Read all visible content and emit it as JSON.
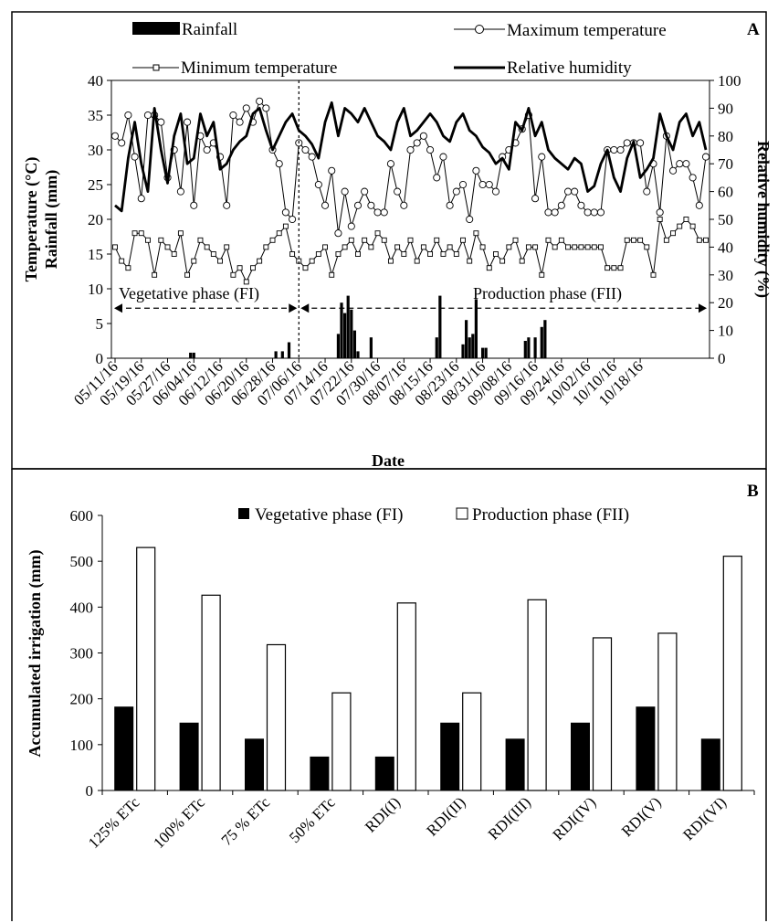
{
  "chart_data": [
    {
      "panel": "A",
      "type": "line",
      "xlabel": "Date",
      "ylabel_left_1": "Temperature  (°C)",
      "ylabel_left_2": "Rainfall (mm)",
      "ylabel_right": "Relative humidity  (%)",
      "ylim_left": [
        0,
        40
      ],
      "ylim_right": [
        0,
        100
      ],
      "left_ticks": [
        "0",
        "5",
        "10",
        "15",
        "20",
        "25",
        "30",
        "35",
        "40"
      ],
      "right_ticks": [
        "0",
        "10",
        "20",
        "30",
        "40",
        "50",
        "60",
        "70",
        "80",
        "90",
        "100"
      ],
      "date_ticks": [
        "05/11/16",
        "05/19/16",
        "05/27/16",
        "06/04/16",
        "06/12/16",
        "06/20/16",
        "06/28/16",
        "07/06/16",
        "07/14/16",
        "07/22/16",
        "07/30/16",
        "08/07/16",
        "08/15/16",
        "08/23/16",
        "08/31/16",
        "09/08/16",
        "09/16/16",
        "09/24/16",
        "10/02/16",
        "10/10/16",
        "10/18/16"
      ],
      "legend": {
        "rainfall": "Rainfall",
        "tmax": "Maximum temperature",
        "tmin": "Minimum temperature",
        "rh": "Relative humidity"
      },
      "phase_fi_label": "Vegetative phase (FI)",
      "phase_fii_label": "Production phase (FII)",
      "phase_boundary_date": "07/06/16",
      "rainfall_mm": [
        [
          23,
          0.8
        ],
        [
          24,
          0.8
        ],
        [
          49,
          1.0
        ],
        [
          51,
          1.0
        ],
        [
          53,
          2.3
        ],
        [
          68,
          3.5
        ],
        [
          69,
          8.0
        ],
        [
          70,
          6.5
        ],
        [
          71,
          9.0
        ],
        [
          72,
          7.0
        ],
        [
          73,
          4.0
        ],
        [
          74,
          1.0
        ],
        [
          78,
          3.0
        ],
        [
          98,
          3.0
        ],
        [
          99,
          9.0
        ],
        [
          106,
          2.0
        ],
        [
          107,
          5.5
        ],
        [
          108,
          3.0
        ],
        [
          109,
          3.5
        ],
        [
          110,
          8.5
        ],
        [
          112,
          1.5
        ],
        [
          113,
          1.5
        ],
        [
          125,
          2.5
        ],
        [
          126,
          3.0
        ],
        [
          128,
          3.0
        ],
        [
          130,
          4.5
        ],
        [
          131,
          5.5
        ]
      ],
      "tmax_c": [
        [
          0,
          32
        ],
        [
          2,
          31
        ],
        [
          4,
          35
        ],
        [
          6,
          29
        ],
        [
          8,
          23
        ],
        [
          10,
          35
        ],
        [
          12,
          35
        ],
        [
          14,
          34
        ],
        [
          16,
          26
        ],
        [
          18,
          30
        ],
        [
          20,
          24
        ],
        [
          22,
          34
        ],
        [
          24,
          22
        ],
        [
          26,
          32
        ],
        [
          28,
          30
        ],
        [
          30,
          31
        ],
        [
          32,
          29
        ],
        [
          34,
          22
        ],
        [
          36,
          35
        ],
        [
          38,
          34
        ],
        [
          40,
          36
        ],
        [
          42,
          34
        ],
        [
          44,
          37
        ],
        [
          46,
          36
        ],
        [
          48,
          30
        ],
        [
          50,
          28
        ],
        [
          52,
          21
        ],
        [
          54,
          20
        ],
        [
          56,
          31
        ],
        [
          58,
          30
        ],
        [
          60,
          29
        ],
        [
          62,
          25
        ],
        [
          64,
          22
        ],
        [
          66,
          27
        ],
        [
          68,
          18
        ],
        [
          70,
          24
        ],
        [
          72,
          19
        ],
        [
          74,
          22
        ],
        [
          76,
          24
        ],
        [
          78,
          22
        ],
        [
          80,
          21
        ],
        [
          82,
          21
        ],
        [
          84,
          28
        ],
        [
          86,
          24
        ],
        [
          88,
          22
        ],
        [
          90,
          30
        ],
        [
          92,
          31
        ],
        [
          94,
          32
        ],
        [
          96,
          30
        ],
        [
          98,
          26
        ],
        [
          100,
          29
        ],
        [
          102,
          22
        ],
        [
          104,
          24
        ],
        [
          106,
          25
        ],
        [
          108,
          20
        ],
        [
          110,
          27
        ],
        [
          112,
          25
        ],
        [
          114,
          25
        ],
        [
          116,
          24
        ],
        [
          118,
          29
        ],
        [
          120,
          30
        ],
        [
          122,
          31
        ],
        [
          124,
          33
        ],
        [
          126,
          35
        ],
        [
          128,
          23
        ],
        [
          130,
          29
        ],
        [
          132,
          21
        ],
        [
          134,
          21
        ],
        [
          136,
          22
        ],
        [
          138,
          24
        ],
        [
          140,
          24
        ],
        [
          142,
          22
        ],
        [
          144,
          21
        ],
        [
          146,
          21
        ],
        [
          148,
          21
        ],
        [
          150,
          30
        ],
        [
          152,
          30
        ],
        [
          154,
          30
        ],
        [
          156,
          31
        ],
        [
          158,
          31
        ],
        [
          160,
          31
        ],
        [
          162,
          24
        ],
        [
          164,
          28
        ],
        [
          166,
          21
        ],
        [
          168,
          32
        ],
        [
          170,
          27
        ],
        [
          172,
          28
        ],
        [
          174,
          28
        ],
        [
          176,
          26
        ],
        [
          178,
          22
        ],
        [
          180,
          29
        ]
      ],
      "tmin_c": [
        [
          0,
          16
        ],
        [
          2,
          14
        ],
        [
          4,
          13
        ],
        [
          6,
          18
        ],
        [
          8,
          18
        ],
        [
          10,
          17
        ],
        [
          12,
          12
        ],
        [
          14,
          17
        ],
        [
          16,
          16
        ],
        [
          18,
          15
        ],
        [
          20,
          18
        ],
        [
          22,
          12
        ],
        [
          24,
          14
        ],
        [
          26,
          17
        ],
        [
          28,
          16
        ],
        [
          30,
          15
        ],
        [
          32,
          14
        ],
        [
          34,
          16
        ],
        [
          36,
          12
        ],
        [
          38,
          13
        ],
        [
          40,
          11
        ],
        [
          42,
          13
        ],
        [
          44,
          14
        ],
        [
          46,
          16
        ],
        [
          48,
          17
        ],
        [
          50,
          18
        ],
        [
          52,
          19
        ],
        [
          54,
          15
        ],
        [
          56,
          14
        ],
        [
          58,
          13
        ],
        [
          60,
          14
        ],
        [
          62,
          15
        ],
        [
          64,
          16
        ],
        [
          66,
          12
        ],
        [
          68,
          15
        ],
        [
          70,
          16
        ],
        [
          72,
          17
        ],
        [
          74,
          15
        ],
        [
          76,
          17
        ],
        [
          78,
          16
        ],
        [
          80,
          18
        ],
        [
          82,
          17
        ],
        [
          84,
          14
        ],
        [
          86,
          16
        ],
        [
          88,
          15
        ],
        [
          90,
          17
        ],
        [
          92,
          14
        ],
        [
          94,
          16
        ],
        [
          96,
          15
        ],
        [
          98,
          17
        ],
        [
          100,
          15
        ],
        [
          102,
          16
        ],
        [
          104,
          15
        ],
        [
          106,
          17
        ],
        [
          108,
          14
        ],
        [
          110,
          18
        ],
        [
          112,
          16
        ],
        [
          114,
          13
        ],
        [
          116,
          15
        ],
        [
          118,
          14
        ],
        [
          120,
          16
        ],
        [
          122,
          17
        ],
        [
          124,
          14
        ],
        [
          126,
          16
        ],
        [
          128,
          16
        ],
        [
          130,
          12
        ],
        [
          132,
          17
        ],
        [
          134,
          16
        ],
        [
          136,
          17
        ],
        [
          138,
          16
        ],
        [
          140,
          16
        ],
        [
          142,
          16
        ],
        [
          144,
          16
        ],
        [
          146,
          16
        ],
        [
          148,
          16
        ],
        [
          150,
          13
        ],
        [
          152,
          13
        ],
        [
          154,
          13
        ],
        [
          156,
          17
        ],
        [
          158,
          17
        ],
        [
          160,
          17
        ],
        [
          162,
          16
        ],
        [
          164,
          12
        ],
        [
          166,
          20
        ],
        [
          168,
          17
        ],
        [
          170,
          18
        ],
        [
          172,
          19
        ],
        [
          174,
          20
        ],
        [
          176,
          19
        ],
        [
          178,
          17
        ],
        [
          180,
          17
        ]
      ],
      "rh_pct": [
        [
          0,
          55
        ],
        [
          2,
          53
        ],
        [
          4,
          72
        ],
        [
          6,
          85
        ],
        [
          8,
          70
        ],
        [
          10,
          60
        ],
        [
          12,
          90
        ],
        [
          14,
          75
        ],
        [
          16,
          63
        ],
        [
          18,
          80
        ],
        [
          20,
          88
        ],
        [
          22,
          70
        ],
        [
          24,
          72
        ],
        [
          26,
          88
        ],
        [
          28,
          80
        ],
        [
          30,
          85
        ],
        [
          32,
          68
        ],
        [
          34,
          70
        ],
        [
          36,
          75
        ],
        [
          38,
          78
        ],
        [
          40,
          80
        ],
        [
          42,
          88
        ],
        [
          44,
          90
        ],
        [
          46,
          82
        ],
        [
          48,
          75
        ],
        [
          50,
          80
        ],
        [
          52,
          85
        ],
        [
          54,
          88
        ],
        [
          56,
          82
        ],
        [
          58,
          80
        ],
        [
          60,
          77
        ],
        [
          62,
          72
        ],
        [
          64,
          85
        ],
        [
          66,
          92
        ],
        [
          68,
          80
        ],
        [
          70,
          90
        ],
        [
          72,
          88
        ],
        [
          74,
          85
        ],
        [
          76,
          90
        ],
        [
          78,
          85
        ],
        [
          80,
          80
        ],
        [
          82,
          78
        ],
        [
          84,
          75
        ],
        [
          86,
          85
        ],
        [
          88,
          90
        ],
        [
          90,
          80
        ],
        [
          92,
          82
        ],
        [
          94,
          85
        ],
        [
          96,
          88
        ],
        [
          98,
          85
        ],
        [
          100,
          80
        ],
        [
          102,
          78
        ],
        [
          104,
          85
        ],
        [
          106,
          88
        ],
        [
          108,
          82
        ],
        [
          110,
          80
        ],
        [
          112,
          76
        ],
        [
          114,
          74
        ],
        [
          116,
          70
        ],
        [
          118,
          72
        ],
        [
          120,
          68
        ],
        [
          122,
          85
        ],
        [
          124,
          82
        ],
        [
          126,
          90
        ],
        [
          128,
          80
        ],
        [
          130,
          85
        ],
        [
          132,
          75
        ],
        [
          134,
          72
        ],
        [
          136,
          70
        ],
        [
          138,
          68
        ],
        [
          140,
          72
        ],
        [
          142,
          70
        ],
        [
          144,
          60
        ],
        [
          146,
          62
        ],
        [
          148,
          70
        ],
        [
          150,
          75
        ],
        [
          152,
          65
        ],
        [
          154,
          60
        ],
        [
          156,
          72
        ],
        [
          158,
          78
        ],
        [
          160,
          65
        ],
        [
          162,
          68
        ],
        [
          164,
          72
        ],
        [
          166,
          88
        ],
        [
          168,
          80
        ],
        [
          170,
          75
        ],
        [
          172,
          85
        ],
        [
          174,
          88
        ],
        [
          176,
          80
        ],
        [
          178,
          85
        ],
        [
          180,
          75
        ]
      ]
    },
    {
      "panel": "B",
      "type": "bar",
      "ylabel": "Accumulated  irrigation (mm)",
      "ylim": [
        0,
        600
      ],
      "yticks": [
        "0",
        "100",
        "200",
        "300",
        "400",
        "500",
        "600"
      ],
      "categories": [
        "125% ETc",
        "100% ETc",
        "75 % ETc",
        "50% ETc",
        "RDI(I)",
        "RDI(II)",
        "RDI(III)",
        "RDI(IV)",
        "RDI(V)",
        "RDI(VI)"
      ],
      "series": [
        {
          "name": "Vegetative phase (FI)",
          "values": [
            182,
            147,
            112,
            73,
            73,
            147,
            112,
            147,
            182,
            112
          ]
        },
        {
          "name": "Production phase (FII)",
          "values": [
            530,
            426,
            318,
            213,
            409,
            213,
            416,
            333,
            343,
            511
          ]
        }
      ]
    }
  ]
}
